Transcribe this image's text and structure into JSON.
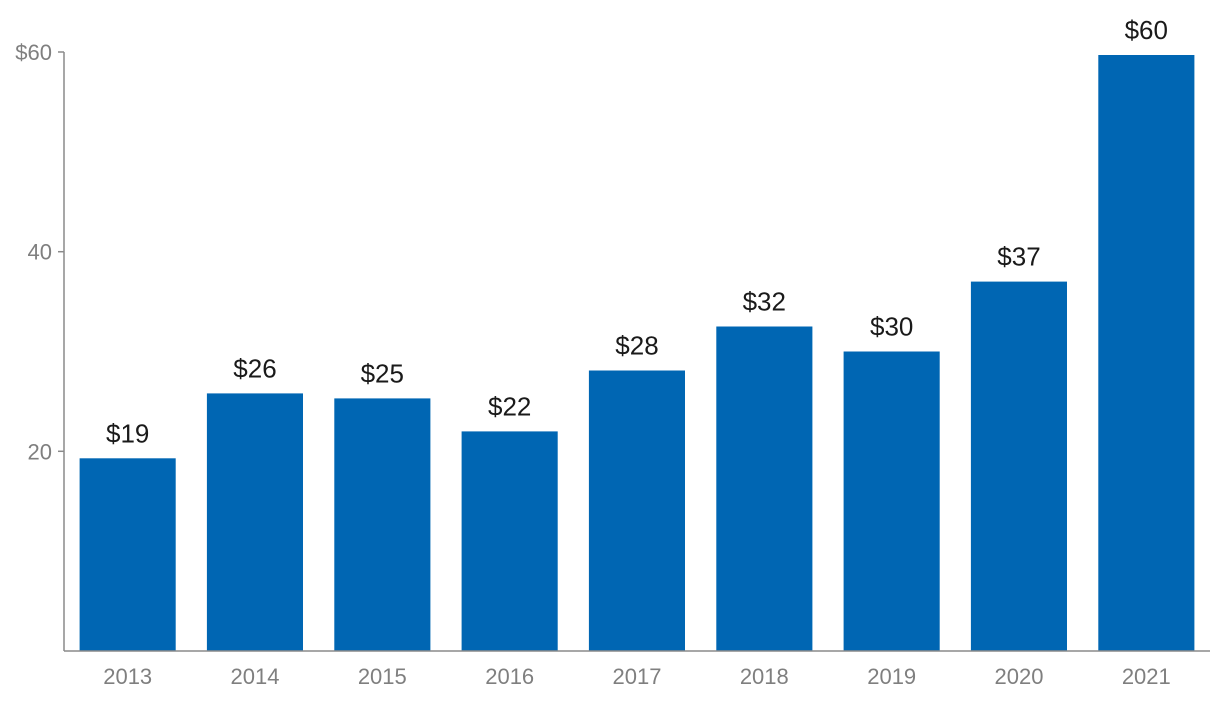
{
  "chart_data": {
    "type": "bar",
    "title": "",
    "xlabel": "",
    "ylabel": "",
    "categories": [
      "2013",
      "2014",
      "2015",
      "2016",
      "2017",
      "2018",
      "2019",
      "2020",
      "2021"
    ],
    "values": [
      19.3,
      25.8,
      25.3,
      22.0,
      28.1,
      32.5,
      30.0,
      37.0,
      59.7
    ],
    "data_labels": [
      "$19",
      "$26",
      "$25",
      "$22",
      "$28",
      "$32",
      "$30",
      "$37",
      "$60"
    ],
    "ylim": [
      0,
      60
    ],
    "yticks": [
      20,
      40,
      60
    ],
    "ytick_labels": [
      "20",
      "40",
      "$60"
    ],
    "bar_color": "#0066b3",
    "grid": false,
    "legend": "none"
  }
}
